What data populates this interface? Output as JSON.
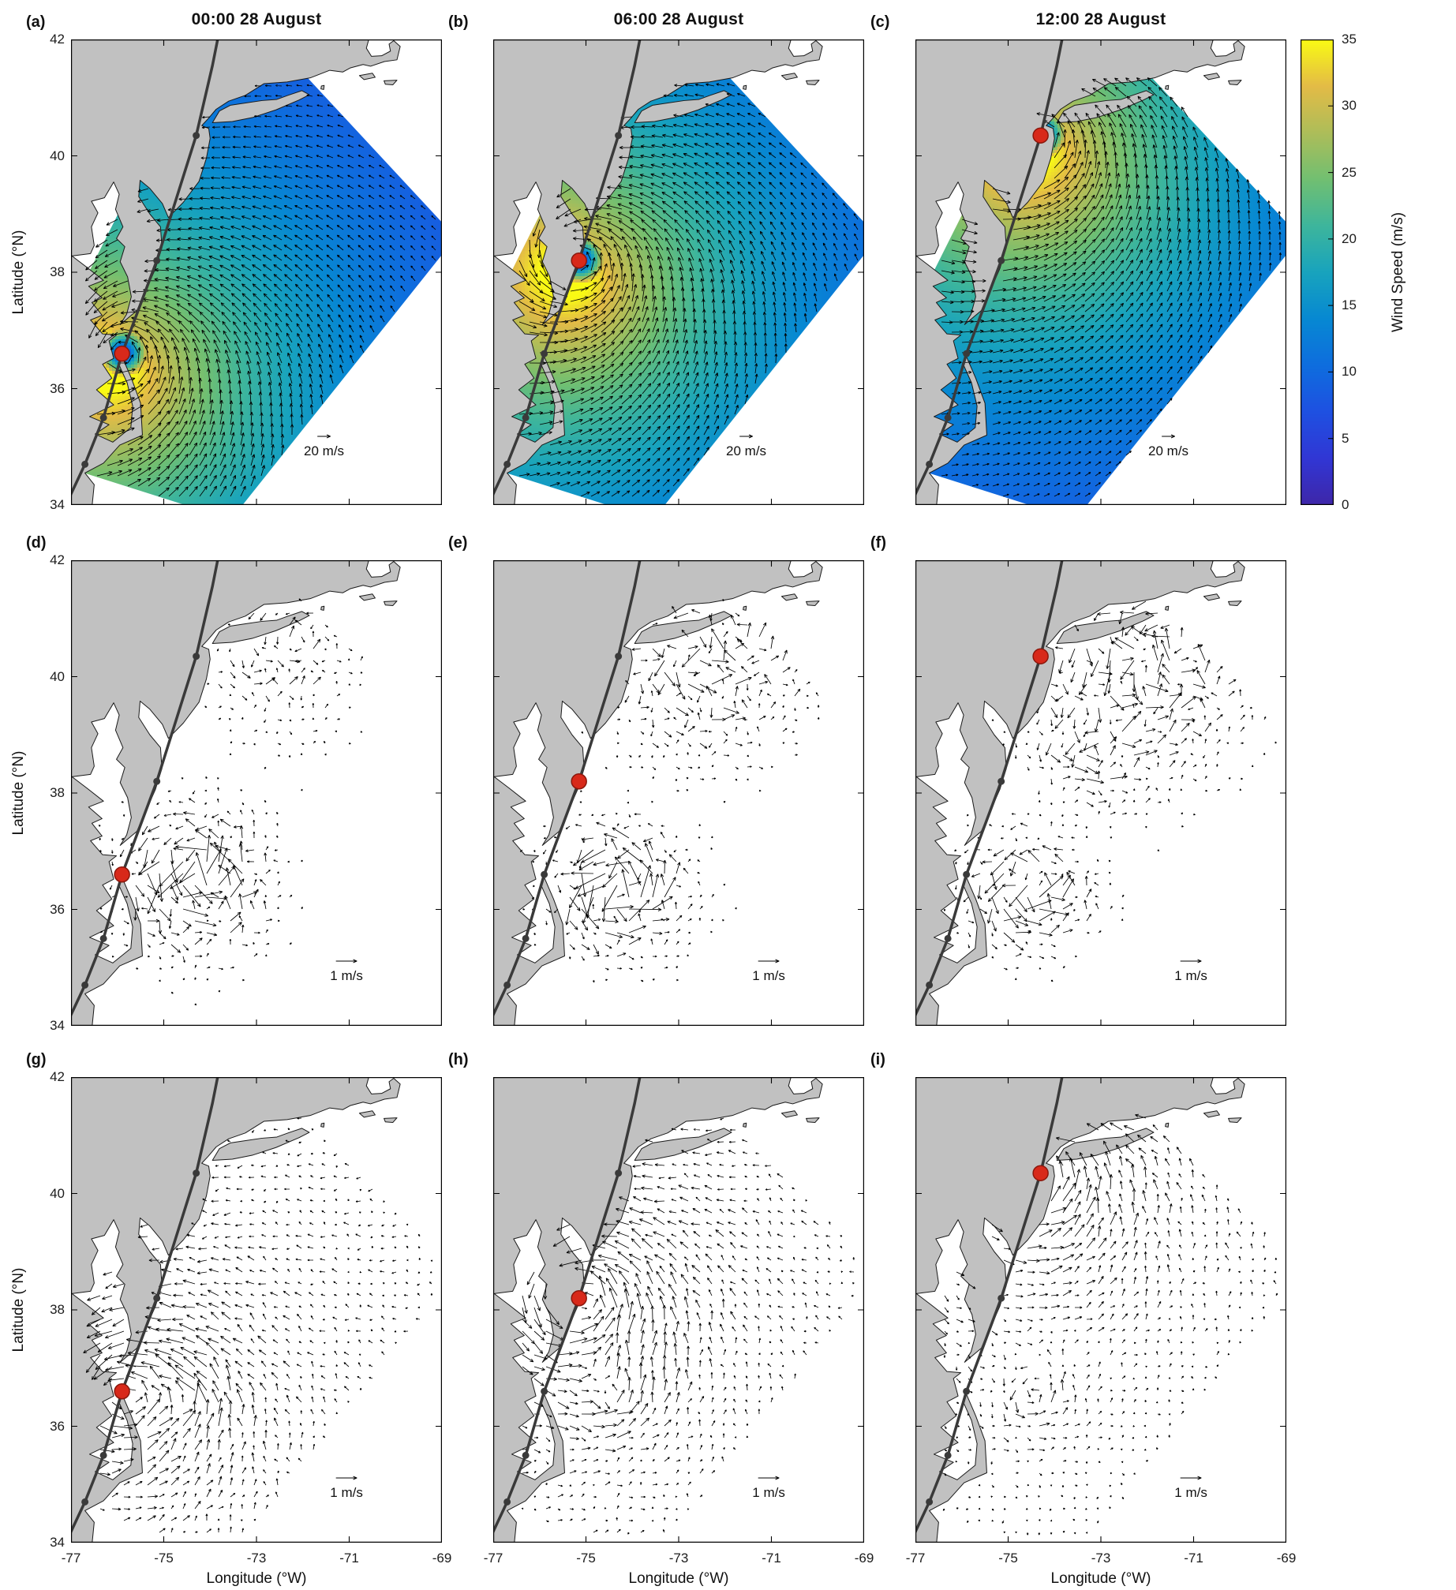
{
  "figure": {
    "panels": [
      {
        "tag": "(a)",
        "title": "00:00 28 August",
        "row": 0,
        "col": 0,
        "type": "wind",
        "scale_label": "20 m/s",
        "storm": {
          "lon": -75.9,
          "lat": 36.6
        }
      },
      {
        "tag": "(b)",
        "title": "06:00 28 August",
        "row": 0,
        "col": 1,
        "type": "wind",
        "scale_label": "20 m/s",
        "storm": {
          "lon": -75.15,
          "lat": 38.2
        }
      },
      {
        "tag": "(c)",
        "title": "12:00 28 August",
        "row": 0,
        "col": 2,
        "type": "wind",
        "scale_label": "20 m/s",
        "storm": {
          "lon": -74.3,
          "lat": 40.35
        }
      },
      {
        "tag": "(d)",
        "row": 1,
        "col": 0,
        "type": "current_mid",
        "scale_label": "1 m/s",
        "storm": {
          "lon": -75.9,
          "lat": 36.6
        }
      },
      {
        "tag": "(e)",
        "row": 1,
        "col": 1,
        "type": "current_mid",
        "scale_label": "1 m/s",
        "storm": {
          "lon": -75.15,
          "lat": 38.2
        }
      },
      {
        "tag": "(f)",
        "row": 1,
        "col": 2,
        "type": "current_mid",
        "scale_label": "1 m/s",
        "storm": {
          "lon": -74.3,
          "lat": 40.35
        }
      },
      {
        "tag": "(g)",
        "row": 2,
        "col": 0,
        "type": "current_bot",
        "scale_label": "1 m/s",
        "storm": {
          "lon": -75.9,
          "lat": 36.6
        }
      },
      {
        "tag": "(h)",
        "row": 2,
        "col": 1,
        "type": "current_bot",
        "scale_label": "1 m/s",
        "storm": {
          "lon": -75.15,
          "lat": 38.2
        }
      },
      {
        "tag": "(i)",
        "row": 2,
        "col": 2,
        "type": "current_bot",
        "scale_label": "1 m/s",
        "storm": {
          "lon": -74.3,
          "lat": 40.35
        }
      }
    ],
    "axes": {
      "xlabel": "Longitude (°W)",
      "ylabel": "Latitude (°N)",
      "xticks": [
        -77,
        -75,
        -73,
        -71,
        -69
      ],
      "yticks": [
        34,
        36,
        38,
        40,
        42
      ],
      "xlim": [
        -77,
        -69
      ],
      "ylim": [
        34,
        42
      ]
    },
    "colorbar": {
      "label": "Wind Speed (m/s)",
      "min": 0,
      "max": 35,
      "ticks": [
        0,
        5,
        10,
        15,
        20,
        25,
        30,
        35
      ]
    },
    "track": {
      "line": [
        [
          -77.2,
          33.85
        ],
        [
          -76.7,
          34.7
        ],
        [
          -76.3,
          35.5
        ],
        [
          -75.9,
          36.6
        ],
        [
          -75.15,
          38.2
        ],
        [
          -74.3,
          40.35
        ],
        [
          -73.95,
          41.55
        ],
        [
          -73.8,
          42.15
        ]
      ],
      "dots": [
        [
          -76.7,
          34.7
        ],
        [
          -76.3,
          35.5
        ],
        [
          -75.9,
          36.6
        ],
        [
          -75.15,
          38.2
        ],
        [
          -74.3,
          40.35
        ]
      ]
    },
    "colors": {
      "land": "#c1c1c1",
      "ocean": "#ffffff",
      "track": "#3a3a3a",
      "track_dot": "#3a3a3a",
      "storm_marker": "#d8291a",
      "storm_marker_edge": "#8a170c",
      "arrow": "#000000"
    }
  },
  "chart_data": {
    "type": "heatmap",
    "description": "3x3 map figure of the US Mid-Atlantic Bight during a hurricane passage. Top row (a-c): modeled wind speed (parula colormap, 0-35 m/s) with wind vectors (20 m/s reference arrow) at three times. Middle row (d-f) and bottom row (g-i): ocean current vectors (1 m/s reference arrow) at the same three times. Each panel shows gray land, the storm track as a dark line with 6-hourly dots, and a red dot marking the storm center at that panel's time.",
    "panel_times": [
      "00:00 28 August",
      "06:00 28 August",
      "12:00 28 August"
    ],
    "storm_positions": [
      {
        "time": "00:00 28 August",
        "lon_W": -75.9,
        "lat_N": 36.6
      },
      {
        "time": "06:00 28 August",
        "lon_W": -75.15,
        "lat_N": 38.2
      },
      {
        "time": "12:00 28 August",
        "lon_W": -74.3,
        "lat_N": 40.35
      }
    ],
    "storm_track_lonlat": [
      [
        -77.2,
        33.85
      ],
      [
        -76.7,
        34.7
      ],
      [
        -76.3,
        35.5
      ],
      [
        -75.9,
        36.6
      ],
      [
        -75.15,
        38.2
      ],
      [
        -74.3,
        40.35
      ],
      [
        -73.95,
        41.55
      ],
      [
        -73.8,
        42.15
      ]
    ],
    "rows": [
      {
        "panels": [
          "(a)",
          "(b)",
          "(c)"
        ],
        "quantity": "wind speed and wind vectors",
        "reference_vector_ms": 20,
        "color_range_ms": [
          0,
          35
        ]
      },
      {
        "panels": [
          "(d)",
          "(e)",
          "(f)"
        ],
        "quantity": "ocean current vectors (sparse/energetic patches)",
        "reference_vector_ms": 1
      },
      {
        "panels": [
          "(g)",
          "(h)",
          "(i)"
        ],
        "quantity": "ocean current vectors (full shelf)",
        "reference_vector_ms": 1
      }
    ],
    "x_axis": {
      "label": "Longitude (°W)",
      "ticks": [
        -77,
        -75,
        -73,
        -71,
        -69
      ],
      "range": [
        -77,
        -69
      ]
    },
    "y_axis": {
      "label": "Latitude (°N)",
      "ticks": [
        34,
        36,
        38,
        40,
        42
      ],
      "range": [
        34,
        42
      ]
    },
    "colorbar": {
      "label": "Wind Speed (m/s)",
      "ticks": [
        0,
        5,
        10,
        15,
        20,
        25,
        30,
        35
      ],
      "range": [
        0,
        35
      ]
    },
    "legend_position": "colorbar right of top row"
  }
}
